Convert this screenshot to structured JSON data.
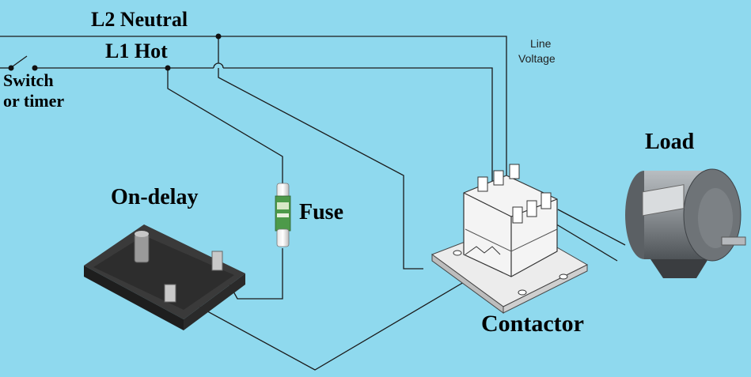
{
  "labels": {
    "l2_neutral": "L2 Neutral",
    "l1_hot": "L1 Hot",
    "switch": "Switch",
    "or_timer": "or timer",
    "line_voltage_1": "Line",
    "line_voltage_2": "Voltage",
    "load": "Load",
    "on_delay": "On-delay",
    "fuse": "Fuse",
    "contactor": "Contactor"
  },
  "colors": {
    "background": "#8fd9ee",
    "wire": "#1a1a1a",
    "timer_body": "#2b2b2b",
    "fuse_body": "#4d9a4a",
    "contactor_body": "#f4f4f4",
    "motor_body": "#8d9296"
  }
}
